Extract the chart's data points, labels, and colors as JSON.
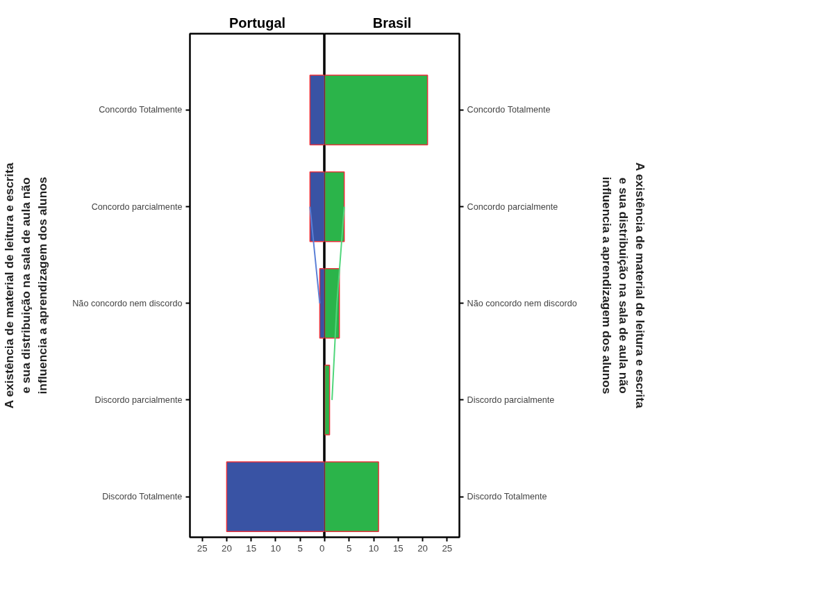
{
  "chart_data": [
    {
      "type": "bar",
      "orientation": "horizontal",
      "title": "Portugal",
      "ylabel": "A existência de material de leitura e escrita e sua distribuição na sala de aula não influencia a aprendizagem dos alunos",
      "categories": [
        "Concordo Totalmente",
        "Concordo parcialmente",
        "Não concordo nem discordo",
        "Discordo parcialmente",
        "Discordo Totalmente"
      ],
      "xlim": [
        27.5,
        0
      ],
      "xticks": [
        25,
        20,
        15,
        10,
        5,
        0
      ],
      "grid": false,
      "series": [
        {
          "color": "#3953a4",
          "values": [
            3,
            3,
            1,
            null,
            20
          ]
        },
        {
          "type": "line",
          "color": "#5b7fd6",
          "values": [
            null,
            3,
            1,
            null,
            null
          ]
        }
      ]
    },
    {
      "type": "bar",
      "orientation": "horizontal",
      "title": "Brasil",
      "ylabel": "A existência de material de leitura e escrita e sua distribuição na sala de aula não influencia a aprendizagem dos alunos",
      "categories": [
        "Concordo Totalmente",
        "Concordo parcialmente",
        "Não concordo nem discordo",
        "Discordo parcialmente",
        "Discordo Totalmente"
      ],
      "xlim": [
        0,
        27.5
      ],
      "xticks": [
        {
          "value": 0,
          "label": null
        },
        5,
        10,
        15,
        20,
        25
      ],
      "grid": false,
      "series": [
        {
          "color": "#2bb44a",
          "values": [
            21,
            4,
            3,
            1,
            11
          ]
        },
        {
          "type": "line",
          "color": "#4fd67a",
          "values": [
            null,
            4,
            2.5,
            1.5,
            null
          ]
        }
      ]
    }
  ]
}
